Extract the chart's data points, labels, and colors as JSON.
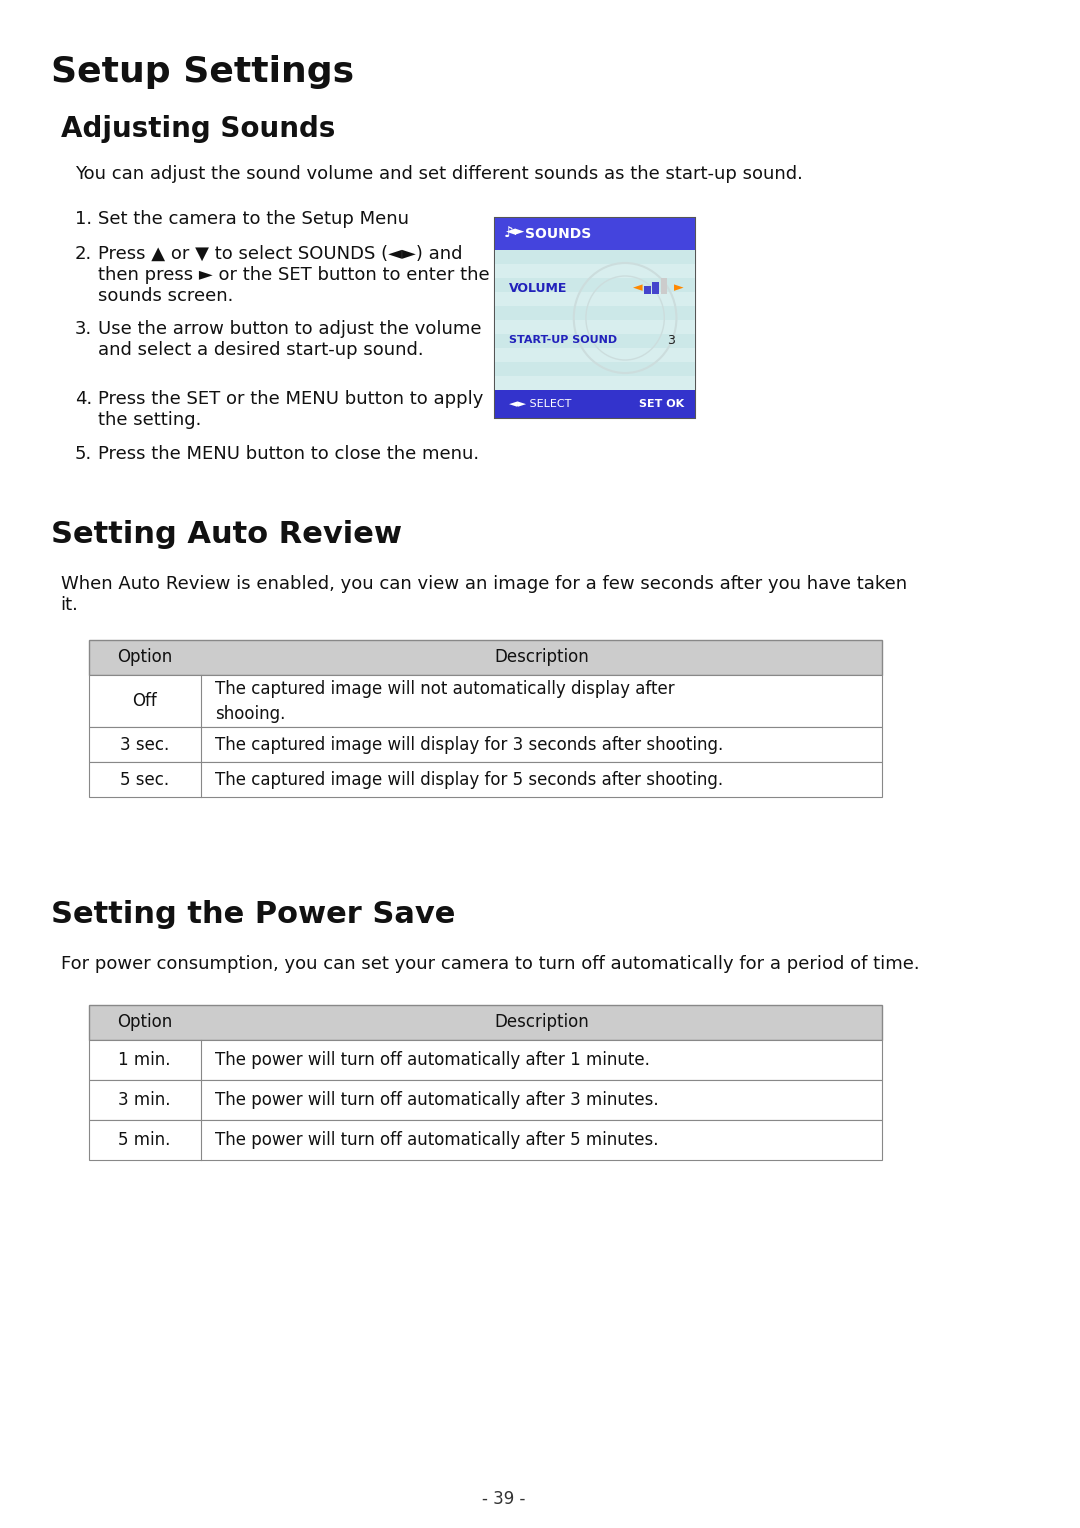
{
  "title": "Setup Settings",
  "section1_title": "Adjusting Sounds",
  "section1_intro": "You can adjust the sound volume and set different sounds as the start-up sound.",
  "section1_steps": [
    "Set the camera to the Setup Menu",
    "Press ▲ or ▼ to select SOUNDS (🔊) and\nthen press ► or the SET button to enter the\nsounds screen.",
    "Use the arrow button to adjust the volume\nand select a desired start-up sound.",
    "Press the SET or the MENU button to apply\nthe setting.",
    "Press the MENU button to close the menu."
  ],
  "section2_title": "Setting Auto Review",
  "section2_intro": "When Auto Review is enabled, you can view an image for a few seconds after you have taken\nit.",
  "section2_table_header": [
    "Option",
    "Description"
  ],
  "section2_table_rows": [
    [
      "Off",
      "The captured image will not automatically display after\nshooing."
    ],
    [
      "3 sec.",
      "The captured image will display for 3 seconds after shooting."
    ],
    [
      "5 sec.",
      "The captured image will display for 5 seconds after shooting."
    ]
  ],
  "section3_title": "Setting the Power Save",
  "section3_intro": "For power consumption, you can set your camera to turn off automatically for a period of time.",
  "section3_table_header": [
    "Option",
    "Description"
  ],
  "section3_table_rows": [
    [
      "1 min.",
      "The power will turn off automatically after 1 minute."
    ],
    [
      "3 min.",
      "The power will turn off automatically after 3 minutes."
    ],
    [
      "5 min.",
      "The power will turn off automatically after 5 minutes."
    ]
  ],
  "footer": "- 39 -",
  "bg_color": "#ffffff",
  "title_color": "#000000",
  "section_title_color": "#000000",
  "body_color": "#000000",
  "table_header_bg": "#d0d0d0",
  "table_border_color": "#888888",
  "screen_header_bg": "#4040e0",
  "screen_body_bg_light": "#e8f4f4",
  "screen_text_color": "#2020cc",
  "screen_header_text": "#ffffff"
}
